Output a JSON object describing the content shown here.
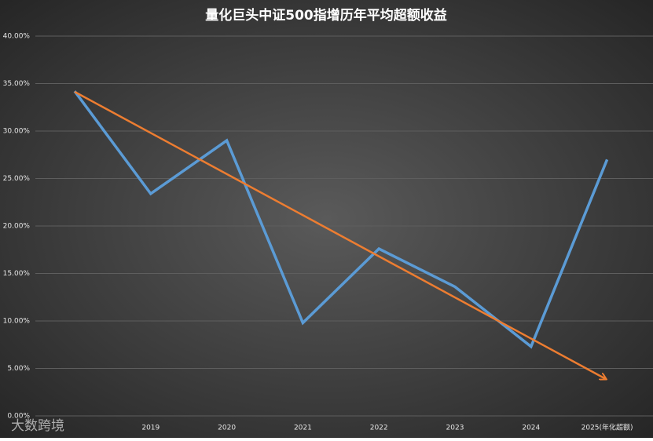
{
  "chart_data": {
    "type": "line",
    "title": "量化巨头中证500指增历年平均超额收益",
    "watermark": "大数跨境",
    "categories": [
      null,
      "2019",
      "2020",
      "2021",
      "2022",
      "2023",
      "2024",
      "2025(年化超额)"
    ],
    "series": [
      {
        "color": "#5b9bd5",
        "values": [
          34.2,
          23.4,
          29.0,
          9.8,
          17.6,
          13.6,
          7.3,
          27.0
        ]
      }
    ],
    "ylim": [
      0,
      40
    ],
    "yticks": [
      {
        "value": 0,
        "label": "0.00%"
      },
      {
        "value": 5,
        "label": "5.00%"
      },
      {
        "value": 10,
        "label": "10.00%"
      },
      {
        "value": 15,
        "label": "15.00%"
      },
      {
        "value": 20,
        "label": "20.00%"
      },
      {
        "value": 25,
        "label": "25.00%"
      },
      {
        "value": 30,
        "label": "30.00%"
      },
      {
        "value": 35,
        "label": "35.00%"
      },
      {
        "value": 40,
        "label": "40.00%"
      }
    ],
    "grid": true
  }
}
